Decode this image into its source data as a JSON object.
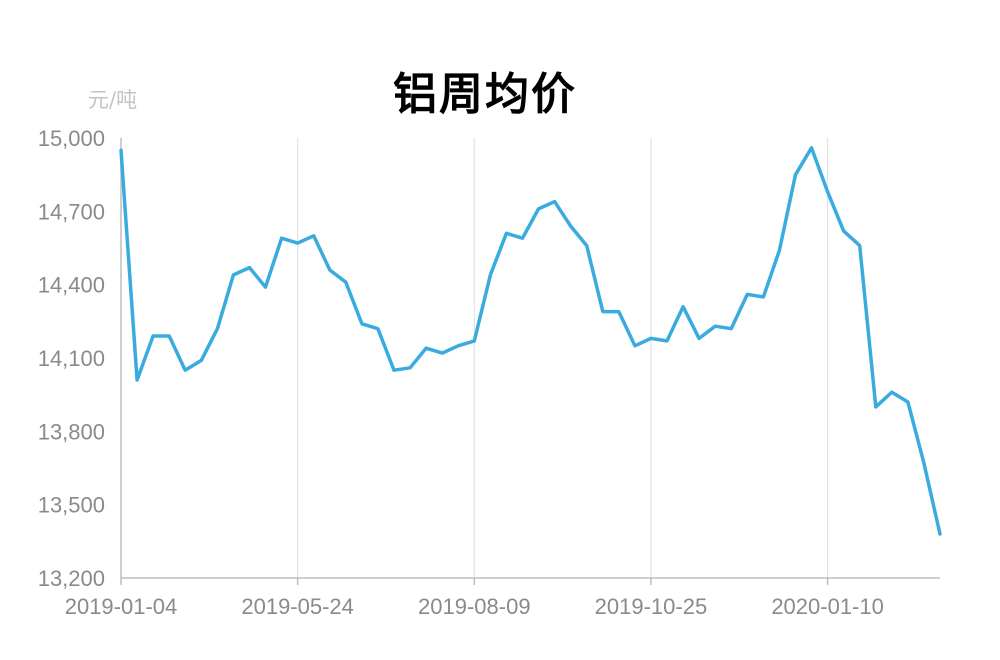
{
  "title": "铝周均价",
  "unit": "元/吨",
  "chart_data": {
    "type": "line",
    "title": "铝周均价",
    "ylabel": "元/吨",
    "xlabel": "",
    "ylim": [
      13200,
      15000
    ],
    "yticks": [
      "15,000",
      "14,700",
      "14,400",
      "14,100",
      "13,800",
      "13,500",
      "13,200"
    ],
    "ytick_values": [
      15000,
      14700,
      14400,
      14100,
      13800,
      13500,
      13200
    ],
    "xticks": [
      "2019-01-04",
      "2019-05-24",
      "2019-08-09",
      "2019-10-25",
      "2020-01-10"
    ],
    "xtick_index": [
      0,
      11,
      22,
      33,
      44
    ],
    "grid": "vertical",
    "color": "#3aabdf",
    "series": [
      {
        "values": [
          14950,
          14010,
          14190,
          14190,
          14050,
          14090,
          14220,
          14440,
          14470,
          14390,
          14590,
          14570,
          14600,
          14460,
          14410,
          14240,
          14220,
          14050,
          14060,
          14140,
          14120,
          14150,
          14170,
          14440,
          14610,
          14590,
          14710,
          14740,
          14640,
          14560,
          14290,
          14290,
          14150,
          14180,
          14170,
          14310,
          14180,
          14230,
          14220,
          14360,
          14350,
          14540,
          14850,
          14960,
          14780,
          14620,
          14560,
          13900,
          13960,
          13920,
          13670,
          13380
        ]
      }
    ]
  }
}
